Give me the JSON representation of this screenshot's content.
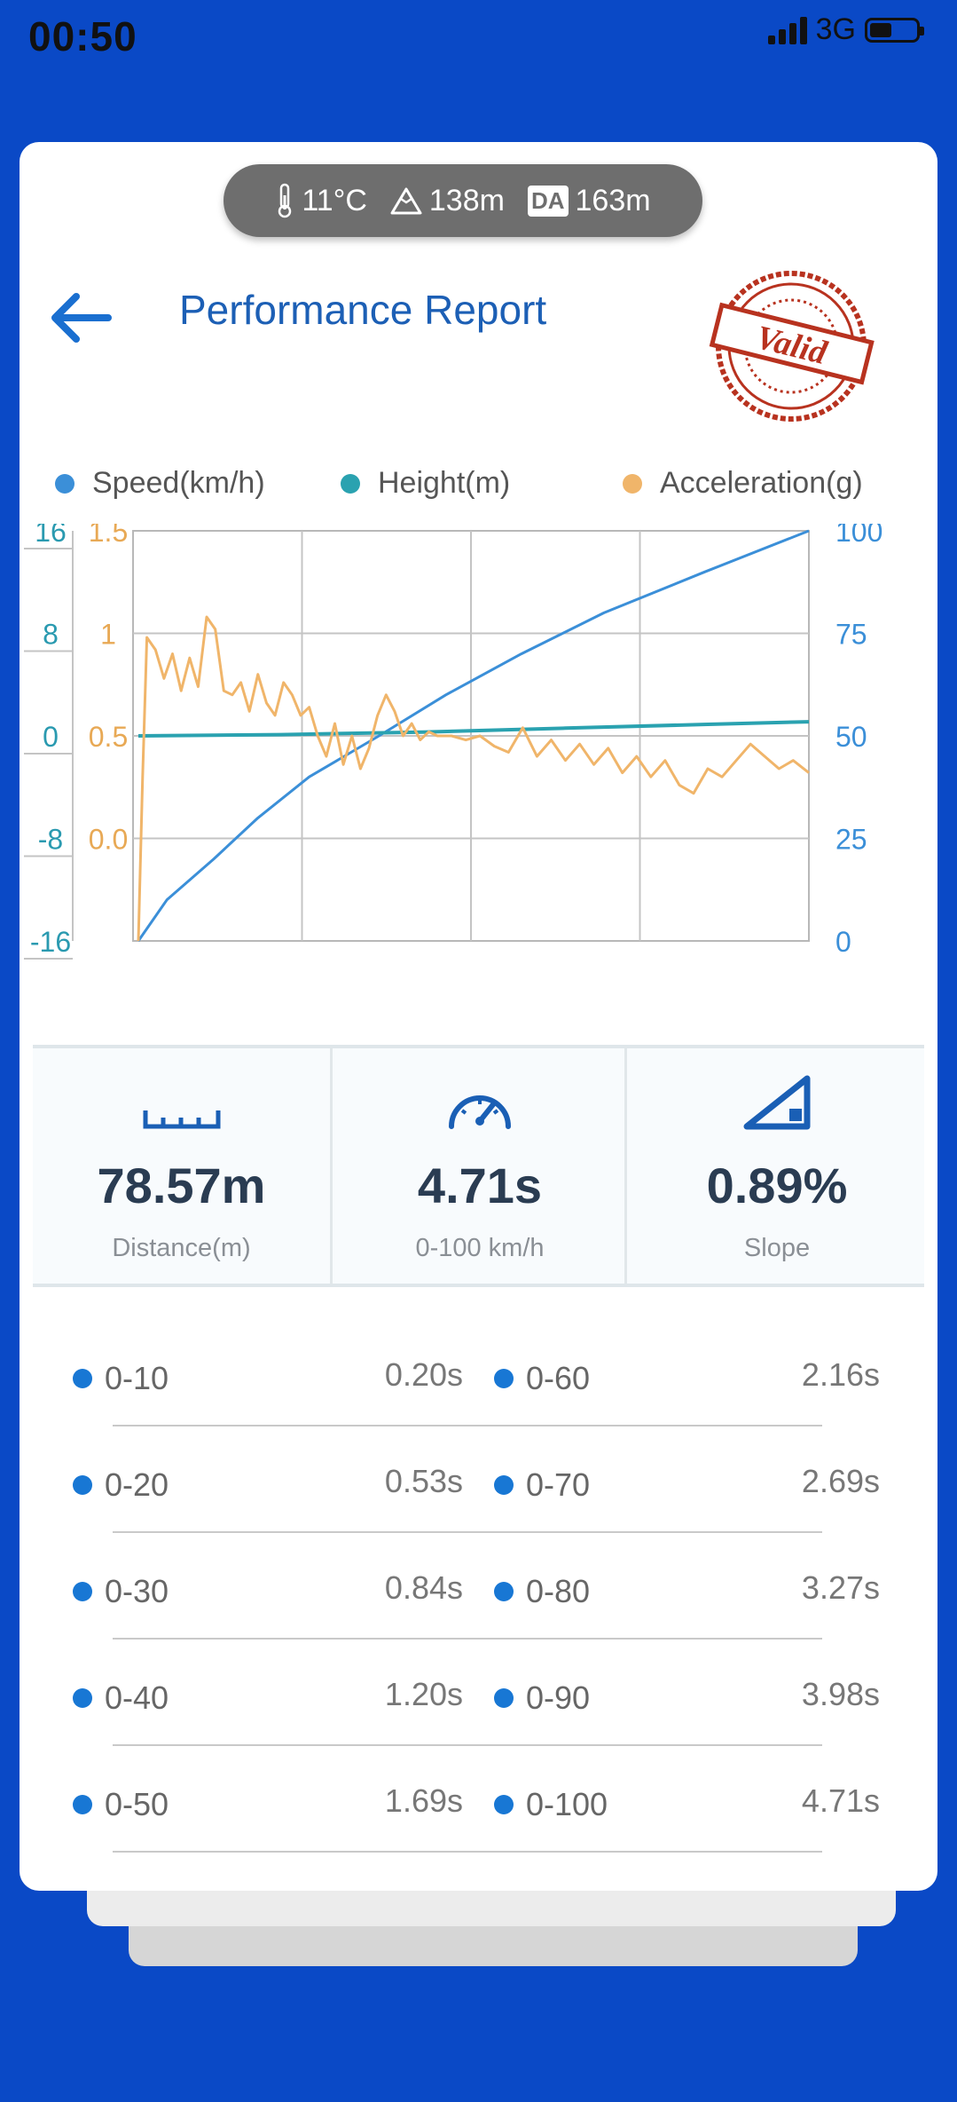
{
  "status_bar": {
    "time": "00:50",
    "network": "3G"
  },
  "conditions": {
    "temperature": "11°C",
    "altitude": "138m",
    "da_label": "DA",
    "density_altitude": "163m"
  },
  "header": {
    "title": "Performance Report",
    "stamp_text": "Valid"
  },
  "legend": [
    {
      "label": "Speed(km/h)",
      "color": "#3b8fd8"
    },
    {
      "label": "Height(m)",
      "color": "#2aa2b0"
    },
    {
      "label": "Acceleration(g)",
      "color": "#f0b56a"
    }
  ],
  "chart_data": {
    "type": "line",
    "x_range": [
      0,
      4.71
    ],
    "grid": true,
    "axes": {
      "height": {
        "ticks": [
          "16",
          "8",
          "0",
          "-8",
          "-16"
        ],
        "range": [
          -16,
          16
        ],
        "color": "#2a9ab0"
      },
      "acceleration": {
        "ticks": [
          "1.5",
          "1",
          "0.5",
          "0.0"
        ],
        "range": [
          -0.5,
          1.5
        ],
        "color": "#e8a955"
      },
      "speed": {
        "ticks": [
          "100",
          "75",
          "50",
          "25",
          "0"
        ],
        "range": [
          0,
          100
        ],
        "color": "#3b8fd8"
      }
    },
    "series": [
      {
        "name": "Speed(km/h)",
        "axis": "speed",
        "color": "#3b8fd8",
        "x": [
          0,
          0.2,
          0.53,
          0.84,
          1.2,
          1.69,
          2.16,
          2.69,
          3.27,
          3.98,
          4.71
        ],
        "y": [
          0,
          10,
          20,
          30,
          40,
          50,
          60,
          70,
          80,
          90,
          100
        ]
      },
      {
        "name": "Height(m)",
        "axis": "height",
        "color": "#2aa2b0",
        "x": [
          0,
          1,
          2,
          3,
          4,
          4.71
        ],
        "y": [
          0,
          0.1,
          0.3,
          0.6,
          0.9,
          1.1
        ]
      },
      {
        "name": "Acceleration(g)",
        "axis": "acceleration",
        "color": "#f0b56a",
        "x": [
          0,
          0.03,
          0.06,
          0.12,
          0.18,
          0.24,
          0.3,
          0.36,
          0.42,
          0.48,
          0.54,
          0.6,
          0.66,
          0.72,
          0.78,
          0.84,
          0.9,
          0.96,
          1.02,
          1.08,
          1.14,
          1.2,
          1.26,
          1.32,
          1.38,
          1.44,
          1.5,
          1.56,
          1.62,
          1.68,
          1.74,
          1.8,
          1.86,
          1.92,
          1.98,
          2.04,
          2.1,
          2.2,
          2.3,
          2.4,
          2.5,
          2.6,
          2.7,
          2.8,
          2.9,
          3.0,
          3.1,
          3.2,
          3.3,
          3.4,
          3.5,
          3.6,
          3.7,
          3.8,
          3.9,
          4.0,
          4.1,
          4.2,
          4.3,
          4.4,
          4.5,
          4.6,
          4.71
        ],
        "y": [
          -0.5,
          0.3,
          0.98,
          0.92,
          0.78,
          0.9,
          0.72,
          0.88,
          0.74,
          1.08,
          1.02,
          0.72,
          0.7,
          0.76,
          0.62,
          0.8,
          0.66,
          0.6,
          0.76,
          0.7,
          0.6,
          0.64,
          0.5,
          0.4,
          0.56,
          0.36,
          0.5,
          0.34,
          0.44,
          0.6,
          0.7,
          0.62,
          0.5,
          0.56,
          0.48,
          0.52,
          0.5,
          0.5,
          0.48,
          0.5,
          0.45,
          0.42,
          0.54,
          0.4,
          0.48,
          0.38,
          0.46,
          0.36,
          0.44,
          0.32,
          0.4,
          0.3,
          0.38,
          0.26,
          0.22,
          0.34,
          0.3,
          0.38,
          0.46,
          0.4,
          0.34,
          0.38,
          0.32
        ]
      }
    ]
  },
  "stats": {
    "distance": {
      "value": "78.57m",
      "label": "Distance(m)"
    },
    "time": {
      "value": "4.71s",
      "label": "0-100 km/h"
    },
    "slope": {
      "value": "0.89%",
      "label": "Slope"
    }
  },
  "splits": [
    {
      "left_label": "0-10",
      "left_time": "0.20s",
      "right_label": "0-60",
      "right_time": "2.16s"
    },
    {
      "left_label": "0-20",
      "left_time": "0.53s",
      "right_label": "0-70",
      "right_time": "2.69s"
    },
    {
      "left_label": "0-30",
      "left_time": "0.84s",
      "right_label": "0-80",
      "right_time": "3.27s"
    },
    {
      "left_label": "0-40",
      "left_time": "1.20s",
      "right_label": "0-90",
      "right_time": "3.98s"
    },
    {
      "left_label": "0-50",
      "left_time": "1.69s",
      "right_label": "0-100",
      "right_time": "4.71s"
    }
  ]
}
